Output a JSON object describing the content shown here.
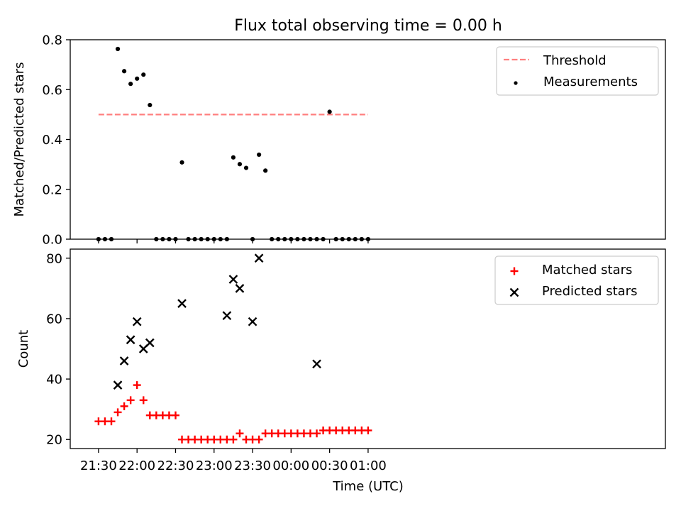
{
  "figure": {
    "title": "Flux total observing time = 0.00 h",
    "xlabel": "Time (UTC)"
  },
  "chart_data": [
    {
      "type": "scatter",
      "ylabel": "Matched/Predicted stars",
      "ylim": [
        0,
        0.8
      ],
      "yticks": [
        "0.0",
        "0.2",
        "0.4",
        "0.6",
        "0.8"
      ],
      "xticks": [
        "21:30",
        "22:00",
        "22:30",
        "23:00",
        "23:30",
        "00:00",
        "00:30",
        "01:00"
      ],
      "legend_position": "top-right",
      "threshold": {
        "name": "Threshold",
        "value": 0.5,
        "from": "21:30",
        "to": "01:00",
        "color": "#ff7f7f",
        "style": "dashed"
      },
      "series": [
        {
          "name": "Measurements",
          "color": "#000000",
          "marker": "dot",
          "x": [
            "21:30",
            "21:35",
            "21:40",
            "21:45",
            "21:50",
            "21:55",
            "22:00",
            "22:05",
            "22:10",
            "22:15",
            "22:20",
            "22:25",
            "22:30",
            "22:35",
            "22:40",
            "22:45",
            "22:50",
            "22:55",
            "23:00",
            "23:05",
            "23:10",
            "23:15",
            "23:20",
            "23:25",
            "23:30",
            "23:35",
            "23:40",
            "23:45",
            "23:50",
            "23:55",
            "00:00",
            "00:05",
            "00:10",
            "00:15",
            "00:20",
            "00:25",
            "00:30",
            "00:35",
            "00:40",
            "00:45",
            "00:50",
            "00:55",
            "01:00"
          ],
          "y": [
            0,
            0,
            0,
            0.763,
            0.674,
            0.623,
            0.644,
            0.66,
            0.538,
            0,
            0,
            0,
            0,
            0.308,
            0,
            0,
            0,
            0,
            0,
            0,
            0,
            0.328,
            0.301,
            0.286,
            0,
            0.339,
            0.275,
            0,
            0,
            0,
            0,
            0,
            0,
            0,
            0,
            0,
            0.511,
            0,
            0,
            0,
            0,
            0,
            0
          ]
        }
      ]
    },
    {
      "type": "scatter",
      "ylabel": "Count",
      "ylim": [
        17,
        83
      ],
      "yticks": [
        "20",
        "40",
        "60",
        "80"
      ],
      "xticks": [
        "21:30",
        "22:00",
        "22:30",
        "23:00",
        "23:30",
        "00:00",
        "00:30",
        "01:00"
      ],
      "legend_position": "top-right",
      "series": [
        {
          "name": "Matched stars",
          "color": "#ff0000",
          "marker": "plus",
          "x": [
            "21:30",
            "21:35",
            "21:40",
            "21:45",
            "21:50",
            "21:55",
            "22:00",
            "22:05",
            "22:10",
            "22:15",
            "22:20",
            "22:25",
            "22:30",
            "22:35",
            "22:40",
            "22:45",
            "22:50",
            "22:55",
            "23:00",
            "23:05",
            "23:10",
            "23:15",
            "23:20",
            "23:25",
            "23:30",
            "23:35",
            "23:40",
            "23:45",
            "23:50",
            "23:55",
            "00:00",
            "00:05",
            "00:10",
            "00:15",
            "00:20",
            "00:25",
            "00:30",
            "00:35",
            "00:40",
            "00:45",
            "00:50",
            "00:55",
            "01:00"
          ],
          "y": [
            26,
            26,
            26,
            29,
            31,
            33,
            38,
            33,
            28,
            28,
            28,
            28,
            28,
            20,
            20,
            20,
            20,
            20,
            20,
            20,
            20,
            20,
            22,
            20,
            20,
            20,
            22,
            22,
            22,
            22,
            22,
            22,
            22,
            22,
            22,
            23,
            23,
            23,
            23,
            23,
            23,
            23,
            23
          ]
        },
        {
          "name": "Predicted stars",
          "color": "#000000",
          "marker": "x",
          "x": [
            "21:45",
            "21:50",
            "21:55",
            "22:00",
            "22:05",
            "22:10",
            "22:35",
            "23:10",
            "23:15",
            "23:20",
            "23:30",
            "23:35",
            "00:20"
          ],
          "y": [
            38,
            46,
            53,
            59,
            50,
            52,
            65,
            61,
            73,
            70,
            59,
            80,
            45
          ]
        }
      ]
    }
  ]
}
